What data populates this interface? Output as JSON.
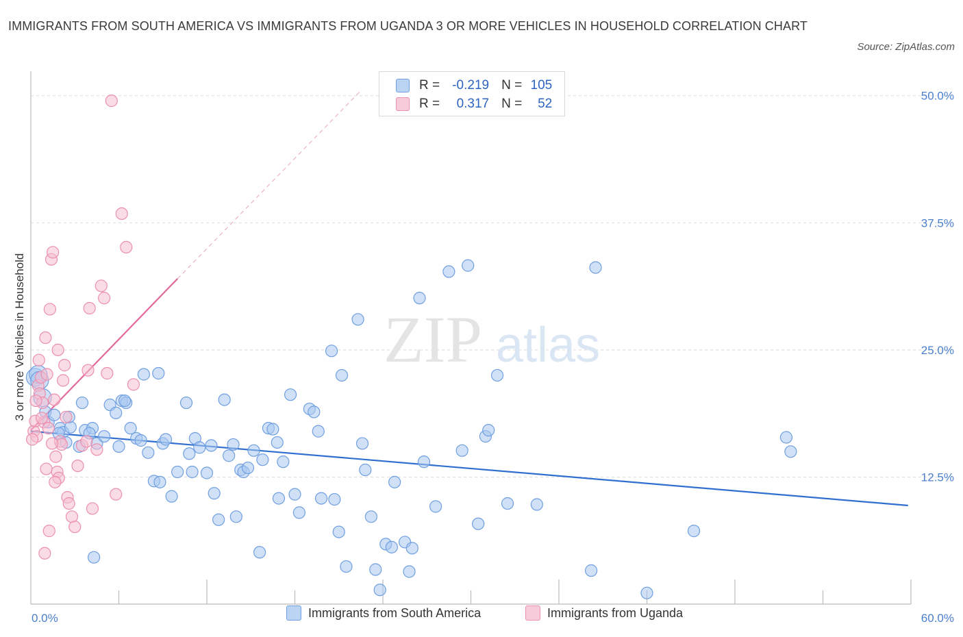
{
  "header": {
    "title": "IMMIGRANTS FROM SOUTH AMERICA VS IMMIGRANTS FROM UGANDA 3 OR MORE VEHICLES IN HOUSEHOLD CORRELATION CHART",
    "source": "Source: ZipAtlas.com"
  },
  "watermark": {
    "zip": "ZIP",
    "atlas": "atlas"
  },
  "stats": {
    "r_label": "R =",
    "n_label": "N =",
    "rows": [
      {
        "r": "-0.219",
        "n": "105",
        "color": "#6f9fe0"
      },
      {
        "r": "0.317",
        "n": "52",
        "color": "#ec8fae"
      }
    ]
  },
  "chart_data": {
    "type": "scatter",
    "xlabel": "",
    "ylabel": "3 or more Vehicles in Household",
    "xlim": [
      0,
      60
    ],
    "ylim": [
      0,
      52
    ],
    "x_tick_labels": [
      "0.0%",
      "60.0%"
    ],
    "y_ticks": [
      12.5,
      25.0,
      37.5,
      50.0
    ],
    "y_tick_labels": [
      "12.5%",
      "25.0%",
      "37.5%",
      "50.0%"
    ],
    "grid": true,
    "legend_position": "bottom-center",
    "series": [
      {
        "name": "Immigrants from South America",
        "color": "#6f9fe0",
        "fill": "#a9c8f0",
        "trend": {
          "x": [
            0,
            59.8
          ],
          "y": [
            17.0,
            9.7
          ],
          "dashed_extension": false
        },
        "points": [
          [
            0.3,
            22.3
          ],
          [
            0.5,
            22.6
          ],
          [
            0.8,
            20.3
          ],
          [
            1.0,
            18.9
          ],
          [
            1.2,
            17.9
          ],
          [
            1.6,
            18.6
          ],
          [
            2.0,
            17.3
          ],
          [
            2.2,
            16.9
          ],
          [
            2.7,
            17.4
          ],
          [
            2.4,
            15.9
          ],
          [
            2.6,
            18.4
          ],
          [
            3.5,
            19.8
          ],
          [
            3.7,
            17.1
          ],
          [
            4.2,
            17.3
          ],
          [
            4.0,
            16.8
          ],
          [
            4.5,
            15.8
          ],
          [
            5.0,
            16.5
          ],
          [
            5.4,
            19.6
          ],
          [
            5.8,
            18.8
          ],
          [
            6.0,
            15.5
          ],
          [
            6.2,
            20.0
          ],
          [
            6.5,
            19.8
          ],
          [
            6.8,
            17.3
          ],
          [
            7.2,
            16.3
          ],
          [
            7.5,
            16.1
          ],
          [
            7.7,
            22.6
          ],
          [
            8.0,
            14.9
          ],
          [
            8.7,
            22.7
          ],
          [
            8.4,
            12.1
          ],
          [
            8.8,
            12.0
          ],
          [
            9.0,
            15.8
          ],
          [
            9.2,
            16.2
          ],
          [
            9.6,
            10.6
          ],
          [
            10.0,
            13.0
          ],
          [
            10.6,
            19.8
          ],
          [
            10.8,
            14.8
          ],
          [
            11.0,
            13.0
          ],
          [
            11.2,
            16.3
          ],
          [
            11.5,
            15.4
          ],
          [
            12.0,
            12.9
          ],
          [
            12.3,
            15.6
          ],
          [
            12.5,
            10.9
          ],
          [
            12.8,
            8.3
          ],
          [
            13.2,
            20.1
          ],
          [
            13.5,
            14.6
          ],
          [
            13.8,
            15.7
          ],
          [
            14.0,
            8.6
          ],
          [
            14.3,
            13.2
          ],
          [
            14.5,
            13.0
          ],
          [
            14.8,
            13.4
          ],
          [
            15.2,
            15.1
          ],
          [
            15.6,
            5.1
          ],
          [
            15.8,
            14.2
          ],
          [
            16.2,
            17.3
          ],
          [
            16.5,
            17.2
          ],
          [
            16.8,
            15.9
          ],
          [
            16.9,
            10.4
          ],
          [
            17.2,
            14.0
          ],
          [
            17.7,
            20.6
          ],
          [
            18.0,
            10.8
          ],
          [
            18.3,
            9.0
          ],
          [
            19.0,
            19.2
          ],
          [
            19.3,
            18.9
          ],
          [
            19.6,
            17.0
          ],
          [
            19.8,
            10.4
          ],
          [
            20.5,
            24.9
          ],
          [
            20.7,
            10.3
          ],
          [
            21.0,
            7.1
          ],
          [
            21.2,
            22.5
          ],
          [
            21.5,
            3.7
          ],
          [
            22.3,
            28.0
          ],
          [
            22.6,
            15.8
          ],
          [
            22.8,
            13.2
          ],
          [
            23.2,
            8.6
          ],
          [
            23.5,
            3.4
          ],
          [
            23.8,
            1.4
          ],
          [
            24.2,
            5.9
          ],
          [
            24.6,
            5.6
          ],
          [
            24.8,
            12.0
          ],
          [
            25.5,
            6.1
          ],
          [
            25.8,
            3.2
          ],
          [
            26.0,
            5.5
          ],
          [
            26.5,
            30.1
          ],
          [
            26.8,
            14.0
          ],
          [
            27.6,
            9.6
          ],
          [
            28.5,
            32.7
          ],
          [
            29.4,
            15.1
          ],
          [
            29.8,
            33.3
          ],
          [
            30.5,
            7.9
          ],
          [
            31.0,
            16.5
          ],
          [
            31.2,
            17.1
          ],
          [
            31.8,
            22.5
          ],
          [
            32.5,
            9.9
          ],
          [
            34.5,
            9.8
          ],
          [
            38.2,
            3.3
          ],
          [
            38.5,
            33.1
          ],
          [
            42.0,
            1.1
          ],
          [
            45.2,
            7.2
          ],
          [
            51.5,
            16.4
          ],
          [
            51.8,
            15.0
          ],
          [
            4.3,
            4.6
          ],
          [
            6.4,
            20.0
          ],
          [
            3.3,
            15.5
          ],
          [
            1.9,
            16.8
          ],
          [
            0.6,
            22.0
          ]
        ]
      },
      {
        "name": "Immigrants from Uganda",
        "color": "#ec8fae",
        "fill": "#f4bfd2",
        "trend": {
          "x": [
            0,
            10.0
          ],
          "y": [
            17.1,
            32.0
          ],
          "dashed_extension": true,
          "dashed_to": [
            22.5,
            50.5
          ]
        },
        "points": [
          [
            0.2,
            17.0
          ],
          [
            0.3,
            18.0
          ],
          [
            0.4,
            16.5
          ],
          [
            0.5,
            21.5
          ],
          [
            0.6,
            20.7
          ],
          [
            0.7,
            22.3
          ],
          [
            0.8,
            19.8
          ],
          [
            0.9,
            17.9
          ],
          [
            1.0,
            26.2
          ],
          [
            1.1,
            22.6
          ],
          [
            1.2,
            17.3
          ],
          [
            1.3,
            29.0
          ],
          [
            1.4,
            33.9
          ],
          [
            1.5,
            34.6
          ],
          [
            1.6,
            20.1
          ],
          [
            1.7,
            14.5
          ],
          [
            1.8,
            13.0
          ],
          [
            1.9,
            12.4
          ],
          [
            2.0,
            16.0
          ],
          [
            2.1,
            15.7
          ],
          [
            2.2,
            22.0
          ],
          [
            2.3,
            23.5
          ],
          [
            2.4,
            18.4
          ],
          [
            2.5,
            10.5
          ],
          [
            2.6,
            9.9
          ],
          [
            2.8,
            8.6
          ],
          [
            3.0,
            7.6
          ],
          [
            3.2,
            13.6
          ],
          [
            3.5,
            15.6
          ],
          [
            3.8,
            16.0
          ],
          [
            3.9,
            23.0
          ],
          [
            4.0,
            29.1
          ],
          [
            4.2,
            9.4
          ],
          [
            4.5,
            15.2
          ],
          [
            4.8,
            31.3
          ],
          [
            5.0,
            30.1
          ],
          [
            5.2,
            22.7
          ],
          [
            5.5,
            49.5
          ],
          [
            5.8,
            10.8
          ],
          [
            6.2,
            38.4
          ],
          [
            6.5,
            35.1
          ],
          [
            7.0,
            21.6
          ],
          [
            0.1,
            16.2
          ],
          [
            0.35,
            20.0
          ],
          [
            0.55,
            24.0
          ],
          [
            0.75,
            18.3
          ],
          [
            1.05,
            13.3
          ],
          [
            1.25,
            7.2
          ],
          [
            0.95,
            5.0
          ],
          [
            1.45,
            15.8
          ],
          [
            1.65,
            12.0
          ],
          [
            1.85,
            25.0
          ]
        ]
      }
    ]
  }
}
